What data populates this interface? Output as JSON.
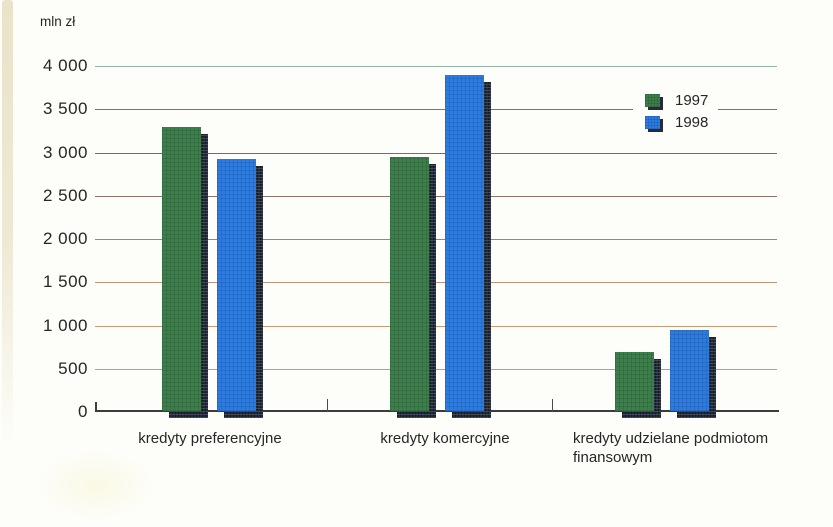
{
  "unit_label": "mln zł",
  "chart_data": {
    "type": "bar",
    "title": "",
    "unit_label": "mln zł",
    "categories": [
      "kredyty preferencyjne",
      "kredyty komercyjne",
      "kredyty udzielane podmiotom finansowym"
    ],
    "series": [
      {
        "name": "1997",
        "color": "#3c7f4b",
        "values": [
          3300,
          2950,
          690
        ]
      },
      {
        "name": "1998",
        "color": "#2b7ce2",
        "values": [
          2920,
          3900,
          950
        ]
      }
    ],
    "ylim": [
      0,
      4000
    ],
    "ytick_step": 500,
    "ytick_labels": [
      "0",
      "500",
      "1 000",
      "1 500",
      "2 000",
      "2 500",
      "3 000",
      "3 500",
      "4 000"
    ],
    "grid": true,
    "legend_position": "upper-right"
  },
  "colors": {
    "series_1997": "#3c7f4b",
    "series_1998": "#2b7ce2",
    "bar_shadow": "#212a38",
    "axis": "#3c3c3c",
    "text": "#262626",
    "page_background": "#fdfdf9",
    "left_strip": "#eae3c9",
    "gridlines": [
      "#cc9872",
      "#cc9a75",
      "#c09478",
      "#a8806c",
      "#8f7265",
      "#82685f",
      "#8b6f66",
      "#93b3ab"
    ]
  }
}
